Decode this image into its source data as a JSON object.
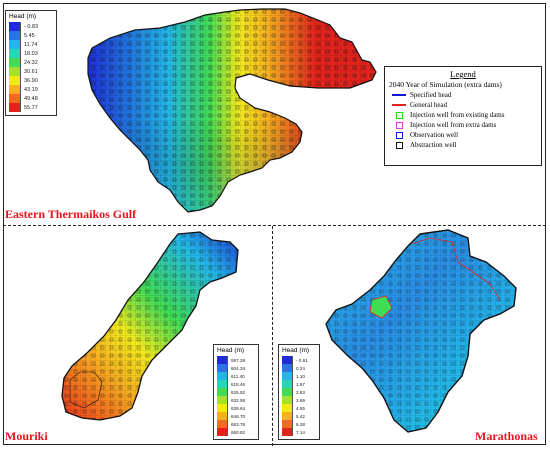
{
  "regions": {
    "thermaikos": {
      "title": "Eastern Thermaikos Gulf"
    },
    "mouriki": {
      "title": "Mouriki"
    },
    "marathonas": {
      "title": "Marathonas"
    }
  },
  "colorbars": {
    "thermaikos": {
      "title": "Head (m)",
      "items": [
        {
          "label": "- 0.83",
          "color": "#1f2bd6"
        },
        {
          "label": "5.45",
          "color": "#2a73e6"
        },
        {
          "label": "11.74",
          "color": "#22b7e8"
        },
        {
          "label": "18.03",
          "color": "#25d6b8"
        },
        {
          "label": "24.32",
          "color": "#3fdc54"
        },
        {
          "label": "30.61",
          "color": "#a4e22a"
        },
        {
          "label": "36.90",
          "color": "#f0ea1d"
        },
        {
          "label": "43.19",
          "color": "#f6b020"
        },
        {
          "label": "49.48",
          "color": "#f26a1e"
        },
        {
          "label": "55.77",
          "color": "#e2231c"
        }
      ]
    },
    "mouriki": {
      "title": "Head (m)",
      "items": [
        {
          "label": "597.28",
          "color": "#1f2bd6"
        },
        {
          "label": "604.34",
          "color": "#2a73e6"
        },
        {
          "label": "611.40",
          "color": "#22b7e8"
        },
        {
          "label": "618.46",
          "color": "#25d6b8"
        },
        {
          "label": "625.52",
          "color": "#3fdc54"
        },
        {
          "label": "632.58",
          "color": "#a4e22a"
        },
        {
          "label": "639.64",
          "color": "#f0ea1d"
        },
        {
          "label": "646.70",
          "color": "#f6b020"
        },
        {
          "label": "653.76",
          "color": "#f26a1e"
        },
        {
          "label": "660.82",
          "color": "#e2231c"
        }
      ]
    },
    "marathonas": {
      "title": "Head (m)",
      "items": [
        {
          "label": "- 0.61",
          "color": "#1f2bd6"
        },
        {
          "label": "0.24",
          "color": "#2a73e6"
        },
        {
          "label": "1.10",
          "color": "#22b7e8"
        },
        {
          "label": "1.97",
          "color": "#25d6b8"
        },
        {
          "label": "2.83",
          "color": "#3fdc54"
        },
        {
          "label": "3.69",
          "color": "#a4e22a"
        },
        {
          "label": "4.55",
          "color": "#f0ea1d"
        },
        {
          "label": "5.42",
          "color": "#f6b020"
        },
        {
          "label": "6.28",
          "color": "#f26a1e"
        },
        {
          "label": "7.14",
          "color": "#e2231c"
        }
      ]
    }
  },
  "legend": {
    "title": "Legend",
    "subtitle": "2040 Year of Simulation (extra dams)",
    "items": [
      {
        "label": "Specified head",
        "symbol": "line",
        "color": "#1515e0",
        "icon": "specified-head-line-icon"
      },
      {
        "label": "General head",
        "symbol": "line",
        "color": "#e2231c",
        "icon": "general-head-line-icon"
      },
      {
        "label": "Injection well from existing dams",
        "symbol": "box",
        "color": "#2bd42b",
        "icon": "injection-existing-well-icon"
      },
      {
        "label": "Injection well from extra dams",
        "symbol": "box",
        "color": "#e040d8",
        "icon": "injection-extra-well-icon"
      },
      {
        "label": "Observation well",
        "symbol": "box",
        "color": "#1515e0",
        "icon": "observation-well-icon"
      },
      {
        "label": "Abstraction well",
        "symbol": "box",
        "color": "#111111",
        "icon": "abstraction-well-icon"
      }
    ]
  }
}
